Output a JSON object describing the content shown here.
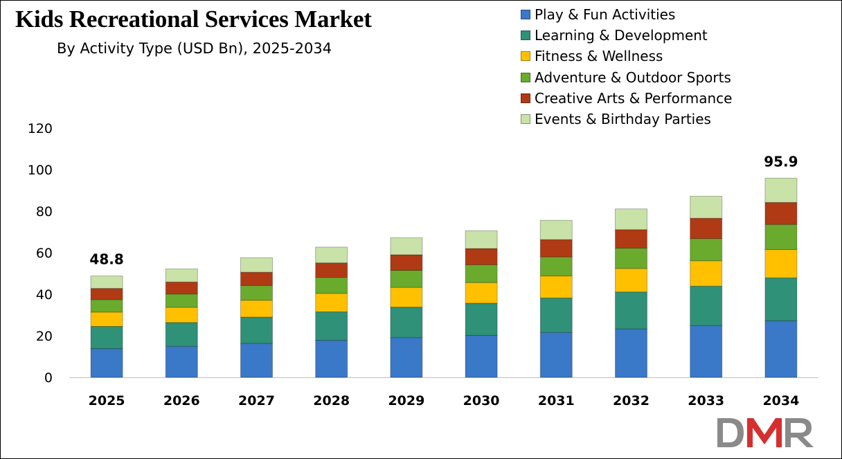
{
  "chart_data": {
    "type": "bar",
    "stacked": true,
    "title": "Kids Recreational Services Market",
    "subtitle": "By Activity Type (USD Bn), 2025-2034",
    "xlabel": "",
    "ylabel": "",
    "ylim": [
      0,
      120
    ],
    "yticks": [
      0,
      20,
      40,
      60,
      80,
      100,
      120
    ],
    "grid": false,
    "legend_position": "top-right",
    "categories": [
      "2025",
      "2026",
      "2027",
      "2028",
      "2029",
      "2030",
      "2031",
      "2032",
      "2033",
      "2034"
    ],
    "series": [
      {
        "name": "Play & Fun Activities",
        "color": "#3a78c8",
        "values": [
          13.8,
          14.9,
          16.4,
          17.8,
          19.1,
          20.2,
          21.6,
          23.3,
          24.9,
          27.2
        ]
      },
      {
        "name": "Learning & Development",
        "color": "#2e9178",
        "values": [
          10.7,
          11.5,
          12.6,
          13.7,
          14.7,
          15.5,
          16.6,
          17.8,
          19.0,
          20.7
        ]
      },
      {
        "name": "Fitness & Wellness",
        "color": "#ffc000",
        "values": [
          6.9,
          7.3,
          8.1,
          8.9,
          9.5,
          9.9,
          10.6,
          11.3,
          12.2,
          13.6
        ]
      },
      {
        "name": "Adventure & Outdoor Sports",
        "color": "#6aaa2c",
        "values": [
          6.0,
          6.4,
          7.1,
          7.7,
          8.2,
          8.6,
          9.2,
          9.8,
          10.7,
          12.1
        ]
      },
      {
        "name": "Creative Arts & Performance",
        "color": "#b03a14",
        "values": [
          5.4,
          5.8,
          6.4,
          7.0,
          7.5,
          7.8,
          8.3,
          8.9,
          9.8,
          10.6
        ]
      },
      {
        "name": "Events & Birthday Parties",
        "color": "#c8e2a8",
        "values": [
          6.0,
          6.3,
          7.0,
          7.6,
          8.2,
          8.6,
          9.3,
          10.0,
          10.6,
          11.7
        ]
      }
    ],
    "total_labels": [
      {
        "category": "2025",
        "value": "48.8"
      },
      {
        "category": "2034",
        "value": "95.9"
      }
    ]
  },
  "logo": {
    "name": "dmr-logo-icon",
    "text": "DMR",
    "colors": [
      "#8a8a8a",
      "#d62f2f"
    ]
  }
}
